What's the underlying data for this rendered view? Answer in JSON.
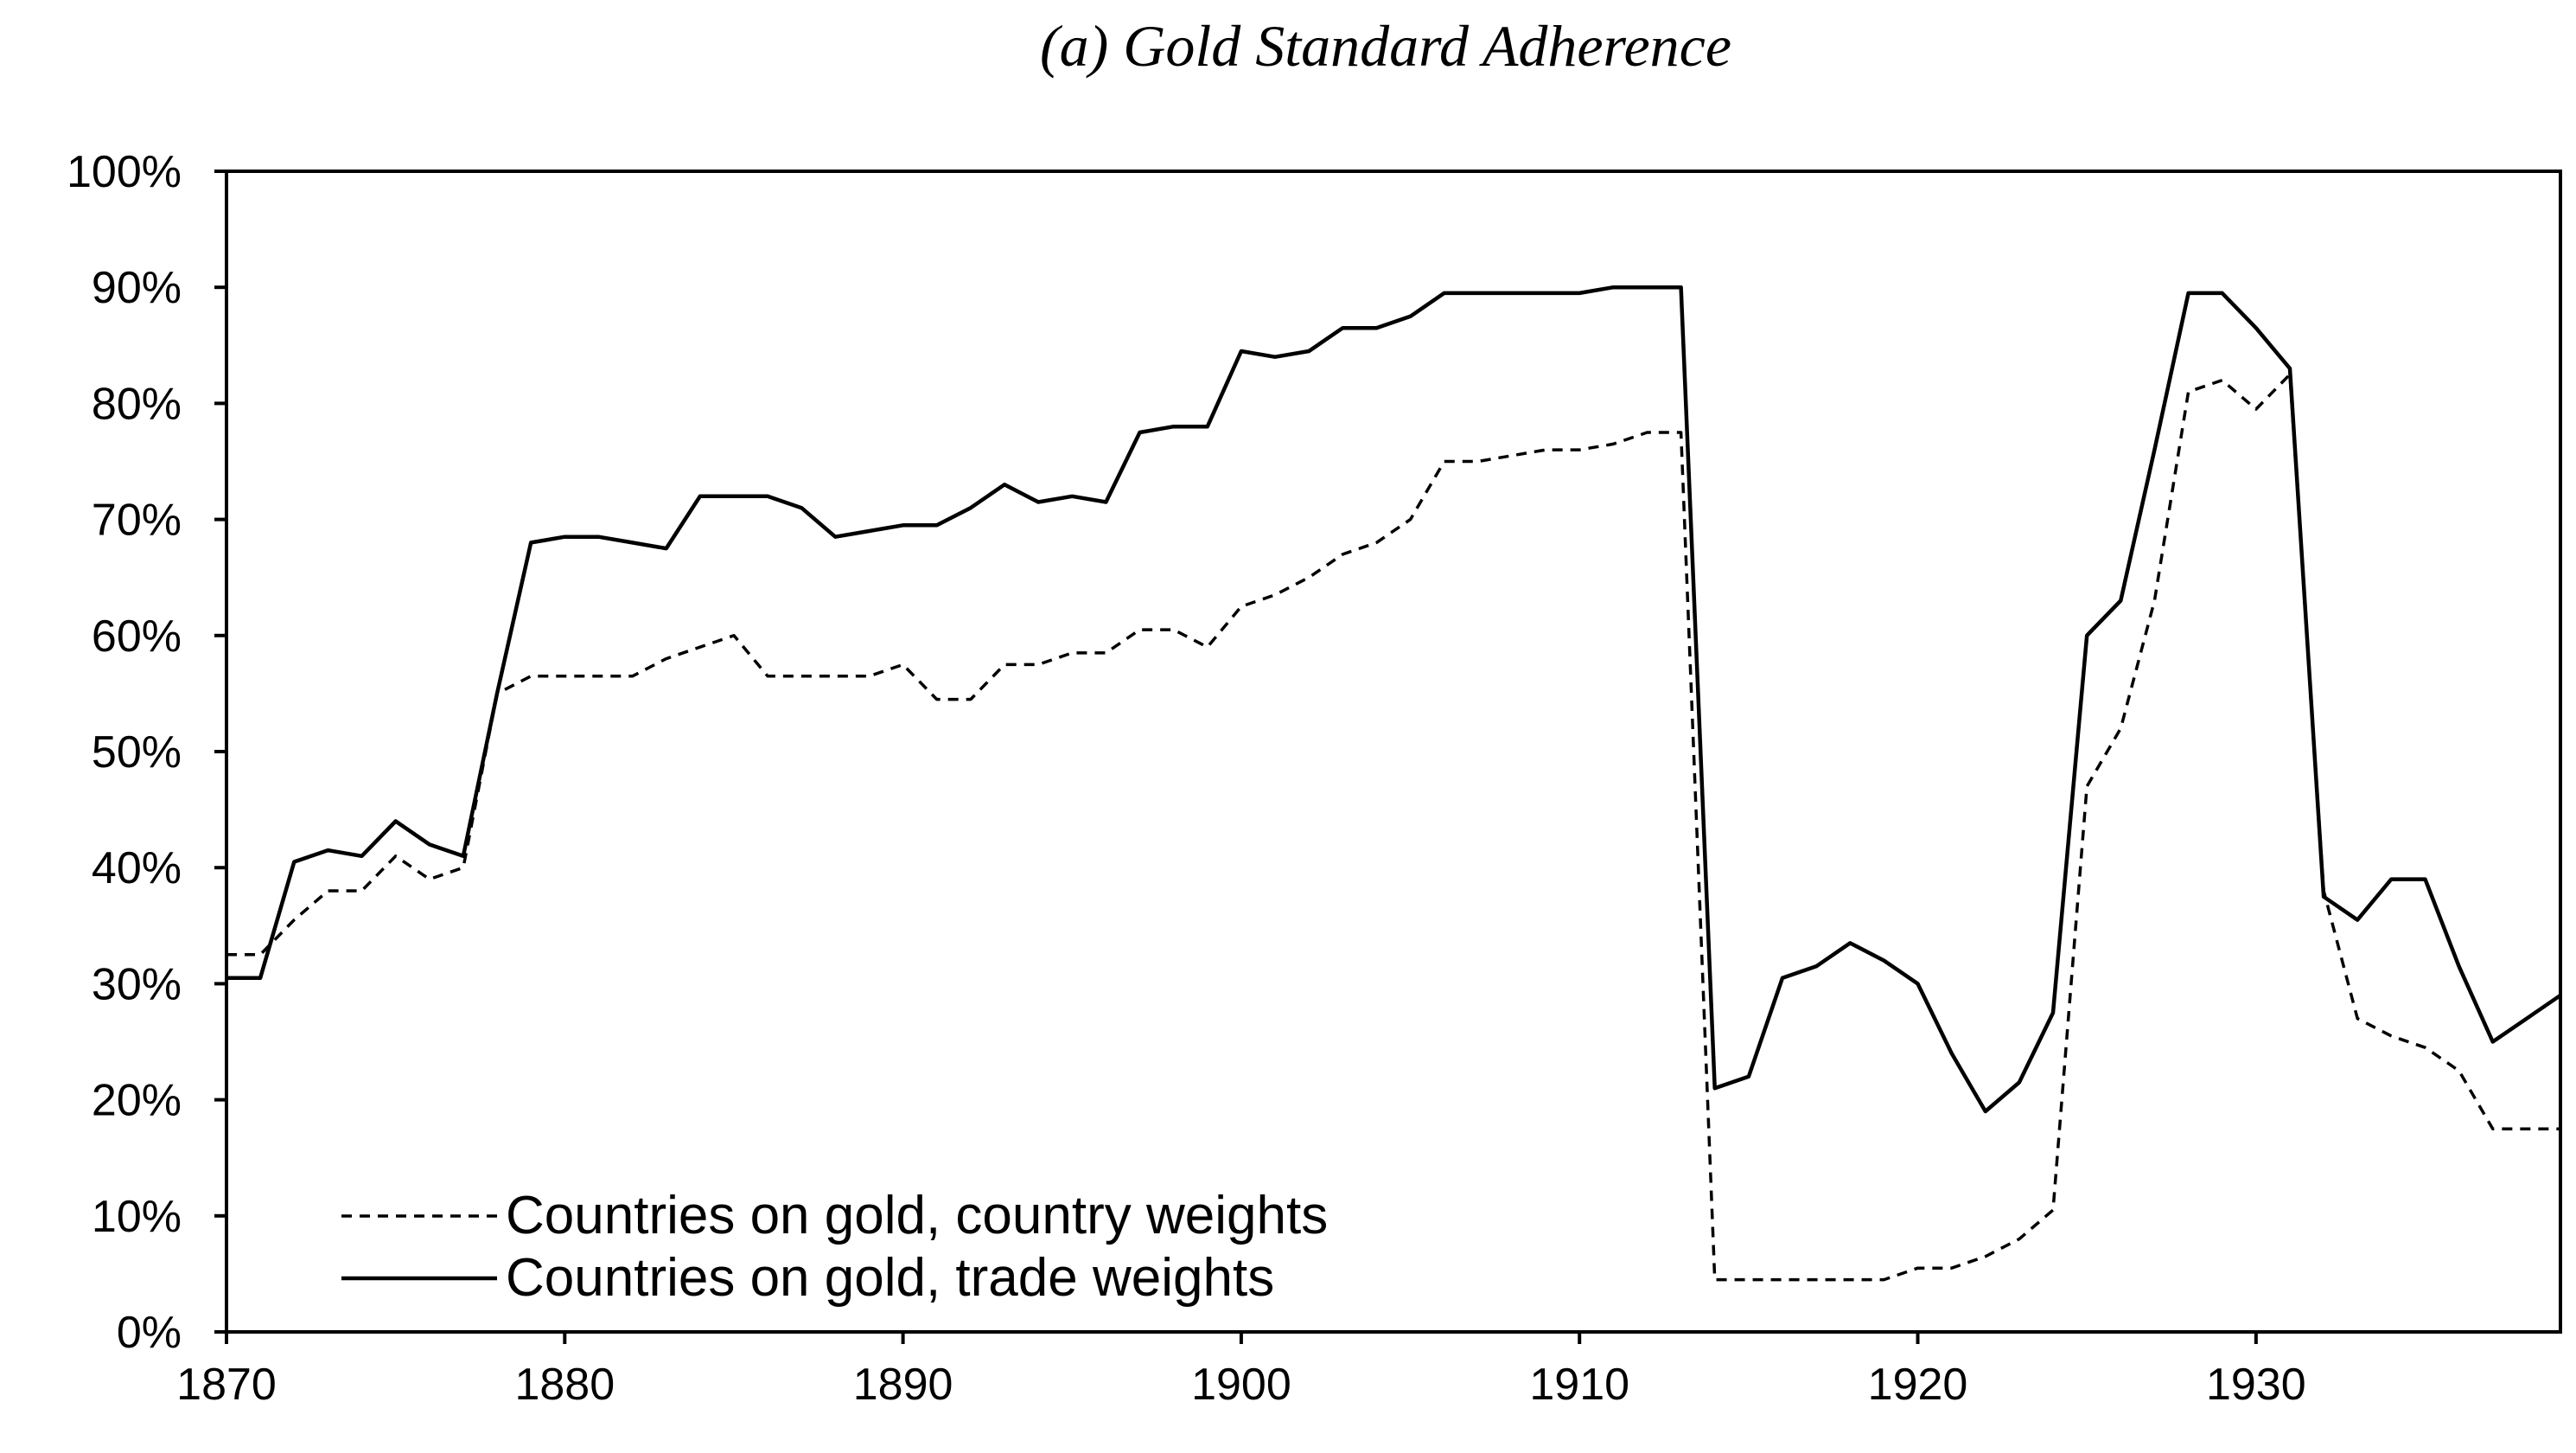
{
  "chart_data": {
    "type": "line",
    "title": "(a) Gold Standard Adherence",
    "xlabel": "",
    "ylabel": "",
    "xlim": [
      1870,
      1939
    ],
    "ylim": [
      0,
      100
    ],
    "x_ticks": [
      1870,
      1880,
      1890,
      1900,
      1910,
      1920,
      1930
    ],
    "x_tick_labels": [
      "1870",
      "1880",
      "1890",
      "1900",
      "1910",
      "1920",
      "1930"
    ],
    "y_ticks": [
      0,
      10,
      20,
      30,
      40,
      50,
      60,
      70,
      80,
      90,
      100
    ],
    "y_tick_labels": [
      "0%",
      "10%",
      "20%",
      "30%",
      "40%",
      "50%",
      "60%",
      "70%",
      "80%",
      "90%",
      "100%"
    ],
    "grid": false,
    "legend_position": "bottom-left",
    "series": [
      {
        "name": "Countries on gold, country weights",
        "style": "dashed",
        "color": "#000000",
        "x": [
          1870,
          1871,
          1872,
          1873,
          1874,
          1875,
          1876,
          1877,
          1878,
          1879,
          1880,
          1881,
          1882,
          1883,
          1884,
          1885,
          1886,
          1887,
          1888,
          1889,
          1890,
          1891,
          1892,
          1893,
          1894,
          1895,
          1896,
          1897,
          1898,
          1899,
          1900,
          1901,
          1902,
          1903,
          1904,
          1905,
          1906,
          1907,
          1908,
          1909,
          1910,
          1911,
          1912,
          1913,
          1914,
          1915,
          1916,
          1917,
          1918,
          1919,
          1920,
          1921,
          1922,
          1923,
          1924,
          1925,
          1926,
          1927,
          1928,
          1929,
          1930,
          1931,
          1932,
          1933,
          1934,
          1935,
          1936,
          1937,
          1938,
          1939
        ],
        "values": [
          32.5,
          32.5,
          35.5,
          38,
          38,
          41,
          39,
          40,
          55,
          56.5,
          56.5,
          56.5,
          56.5,
          58,
          59,
          60,
          56.5,
          56.5,
          56.5,
          56.5,
          57.5,
          54.5,
          54.5,
          57.5,
          57.5,
          58.5,
          58.5,
          60.5,
          60.5,
          59,
          62.5,
          63.5,
          65,
          67,
          68,
          70,
          75,
          75,
          75.5,
          76,
          76,
          76.5,
          77.5,
          77.5,
          4.5,
          4.5,
          4.5,
          4.5,
          4.5,
          4.5,
          5.5,
          5.5,
          6.5,
          8,
          10.5,
          47,
          52,
          63,
          81,
          82,
          79.5,
          82.5,
          38,
          27,
          25.5,
          24.5,
          22.5,
          17.5,
          17.5,
          17.5
        ]
      },
      {
        "name": "Countries on gold, trade weights",
        "style": "solid",
        "color": "#000000",
        "x": [
          1870,
          1871,
          1872,
          1873,
          1874,
          1875,
          1876,
          1877,
          1878,
          1879,
          1880,
          1881,
          1882,
          1883,
          1884,
          1885,
          1886,
          1887,
          1888,
          1889,
          1890,
          1891,
          1892,
          1893,
          1894,
          1895,
          1896,
          1897,
          1898,
          1899,
          1900,
          1901,
          1902,
          1903,
          1904,
          1905,
          1906,
          1907,
          1908,
          1909,
          1910,
          1911,
          1912,
          1913,
          1914,
          1915,
          1916,
          1917,
          1918,
          1919,
          1920,
          1921,
          1922,
          1923,
          1924,
          1925,
          1926,
          1927,
          1928,
          1929,
          1930,
          1931,
          1932,
          1933,
          1934,
          1935,
          1936,
          1937,
          1938,
          1939
        ],
        "values": [
          30.5,
          30.5,
          40.5,
          41.5,
          41,
          44,
          42,
          41,
          55,
          68,
          68.5,
          68.5,
          68,
          67.5,
          72,
          72,
          72,
          71,
          68.5,
          69,
          69.5,
          69.5,
          71,
          73,
          71.5,
          72,
          71.5,
          77.5,
          78,
          78,
          84.5,
          84,
          84.5,
          86.5,
          86.5,
          87.5,
          89.5,
          89.5,
          89.5,
          89.5,
          89.5,
          90,
          90,
          90,
          21,
          22,
          30.5,
          31.5,
          33.5,
          32,
          30,
          24,
          19,
          21.5,
          27.5,
          60,
          63,
          76,
          89.5,
          89.5,
          86.5,
          83,
          37.5,
          35.5,
          39,
          39,
          31.5,
          25,
          27,
          29
        ]
      }
    ]
  }
}
